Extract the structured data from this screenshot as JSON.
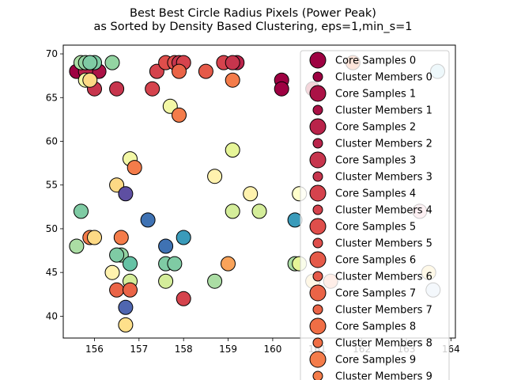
{
  "chart_data": {
    "type": "scatter",
    "title_lines": [
      "Best Best Circle Radius Pixels (Power Peak)",
      "as Sorted by Density Based Clustering, eps=1,min_s=1"
    ],
    "xlabel": "",
    "ylabel": "",
    "xlim": [
      155.3,
      164.1
    ],
    "ylim": [
      37.5,
      71.0
    ],
    "xticks": [
      156,
      157,
      158,
      159,
      160,
      161,
      162,
      163,
      164
    ],
    "yticks": [
      40,
      45,
      50,
      55,
      60,
      65,
      70
    ],
    "legend": {
      "placement": "upper-right",
      "entries": [
        {
          "label": "Core Samples 0",
          "kind": "core",
          "color": "#9e0142"
        },
        {
          "label": "Cluster Members 0",
          "kind": "member",
          "color": "#9e0142"
        },
        {
          "label": "Core Samples 1",
          "kind": "core",
          "color": "#ab1246"
        },
        {
          "label": "Cluster Members 1",
          "kind": "member",
          "color": "#ab1246"
        },
        {
          "label": "Core Samples 2",
          "kind": "core",
          "color": "#b9234a"
        },
        {
          "label": "Cluster Members 2",
          "kind": "member",
          "color": "#b9234a"
        },
        {
          "label": "Core Samples 3",
          "kind": "core",
          "color": "#c7354d"
        },
        {
          "label": "Cluster Members 3",
          "kind": "member",
          "color": "#c7354d"
        },
        {
          "label": "Core Samples 4",
          "kind": "core",
          "color": "#d5434d"
        },
        {
          "label": "Cluster Members 4",
          "kind": "member",
          "color": "#d5434d"
        },
        {
          "label": "Core Samples 5",
          "kind": "core",
          "color": "#df4e4b"
        },
        {
          "label": "Cluster Members 5",
          "kind": "member",
          "color": "#df4e4b"
        },
        {
          "label": "Core Samples 6",
          "kind": "core",
          "color": "#e55a49"
        },
        {
          "label": "Cluster Members 6",
          "kind": "member",
          "color": "#e55a49"
        },
        {
          "label": "Core Samples 7",
          "kind": "core",
          "color": "#ea6447"
        },
        {
          "label": "Cluster Members 7",
          "kind": "member",
          "color": "#ea6447"
        },
        {
          "label": "Core Samples 8",
          "kind": "core",
          "color": "#f06e45"
        },
        {
          "label": "Cluster Members 8",
          "kind": "member",
          "color": "#f06e45"
        },
        {
          "label": "Core Samples 9",
          "kind": "core",
          "color": "#f47c4a"
        },
        {
          "label": "Cluster Members 9",
          "kind": "member",
          "color": "#f47c4a"
        }
      ]
    },
    "points": [
      {
        "x": 155.6,
        "y": 68,
        "color": "#9e0142"
      },
      {
        "x": 155.9,
        "y": 68,
        "color": "#9e0142"
      },
      {
        "x": 156.1,
        "y": 68,
        "color": "#ab1246"
      },
      {
        "x": 155.8,
        "y": 68,
        "color": "#b9234a"
      },
      {
        "x": 156.0,
        "y": 66,
        "color": "#c7354d"
      },
      {
        "x": 156.5,
        "y": 66,
        "color": "#c7354d"
      },
      {
        "x": 157.4,
        "y": 68,
        "color": "#d5434d"
      },
      {
        "x": 157.3,
        "y": 66,
        "color": "#d5434d"
      },
      {
        "x": 157.6,
        "y": 69,
        "color": "#df4e4b"
      },
      {
        "x": 157.8,
        "y": 69,
        "color": "#df4e4b"
      },
      {
        "x": 157.9,
        "y": 69,
        "color": "#c7354d"
      },
      {
        "x": 158.0,
        "y": 69,
        "color": "#d5434d"
      },
      {
        "x": 157.9,
        "y": 68,
        "color": "#ea6447"
      },
      {
        "x": 158.5,
        "y": 68,
        "color": "#e55a49"
      },
      {
        "x": 158.9,
        "y": 69,
        "color": "#d5434d"
      },
      {
        "x": 159.2,
        "y": 69,
        "color": "#b9234a"
      },
      {
        "x": 159.1,
        "y": 69,
        "color": "#c7354d"
      },
      {
        "x": 160.2,
        "y": 67,
        "color": "#9e0142"
      },
      {
        "x": 160.2,
        "y": 66,
        "color": "#9e0142"
      },
      {
        "x": 160.9,
        "y": 66,
        "color": "#c7354d"
      },
      {
        "x": 159.1,
        "y": 67,
        "color": "#f47c4a"
      },
      {
        "x": 161.8,
        "y": 69,
        "color": "#f47c4a"
      },
      {
        "x": 157.7,
        "y": 64,
        "color": "#f3f8a6"
      },
      {
        "x": 157.9,
        "y": 63,
        "color": "#f47c4a"
      },
      {
        "x": 155.7,
        "y": 69,
        "color": "#abdda4"
      },
      {
        "x": 155.8,
        "y": 69,
        "color": "#93d4a2"
      },
      {
        "x": 156.0,
        "y": 69,
        "color": "#7fcba4"
      },
      {
        "x": 155.9,
        "y": 69,
        "color": "#7fcba4"
      },
      {
        "x": 156.4,
        "y": 69,
        "color": "#93d4a2"
      },
      {
        "x": 155.8,
        "y": 67,
        "color": "#f3f8a6"
      },
      {
        "x": 155.9,
        "y": 67,
        "color": "#fdd985"
      },
      {
        "x": 163.7,
        "y": 68,
        "color": "#abd9e9"
      },
      {
        "x": 159.1,
        "y": 59,
        "color": "#e6f598"
      },
      {
        "x": 156.8,
        "y": 58,
        "color": "#f3f8a6"
      },
      {
        "x": 156.9,
        "y": 57,
        "color": "#f47c4a"
      },
      {
        "x": 158.7,
        "y": 56,
        "color": "#fff2ae"
      },
      {
        "x": 156.5,
        "y": 55,
        "color": "#fdd985"
      },
      {
        "x": 156.7,
        "y": 54,
        "color": "#5e4fa2"
      },
      {
        "x": 159.5,
        "y": 54,
        "color": "#fff2ae"
      },
      {
        "x": 160.6,
        "y": 54,
        "color": "#ffffcc"
      },
      {
        "x": 155.7,
        "y": 52,
        "color": "#7fcba4"
      },
      {
        "x": 159.1,
        "y": 52,
        "color": "#d4ed9a"
      },
      {
        "x": 159.7,
        "y": 52,
        "color": "#d4ed9a"
      },
      {
        "x": 163.3,
        "y": 52,
        "color": "#f6b3c2"
      },
      {
        "x": 157.2,
        "y": 51,
        "color": "#3f72b3"
      },
      {
        "x": 160.5,
        "y": 51,
        "color": "#3a9bba"
      },
      {
        "x": 155.9,
        "y": 49,
        "color": "#f47c4a"
      },
      {
        "x": 156.0,
        "y": 49,
        "color": "#fdd985"
      },
      {
        "x": 156.6,
        "y": 49,
        "color": "#f47c4a"
      },
      {
        "x": 158.0,
        "y": 49,
        "color": "#3a9bba"
      },
      {
        "x": 155.6,
        "y": 48,
        "color": "#abdda4"
      },
      {
        "x": 157.6,
        "y": 48,
        "color": "#3f72b3"
      },
      {
        "x": 156.6,
        "y": 47,
        "color": "#93d4a2"
      },
      {
        "x": 156.5,
        "y": 47,
        "color": "#7fcba4"
      },
      {
        "x": 156.8,
        "y": 46,
        "color": "#66c2a5"
      },
      {
        "x": 157.6,
        "y": 46,
        "color": "#7fcba4"
      },
      {
        "x": 157.8,
        "y": 46,
        "color": "#7fcba4"
      },
      {
        "x": 159.0,
        "y": 46,
        "color": "#f9a35a"
      },
      {
        "x": 160.5,
        "y": 46,
        "color": "#abdda4"
      },
      {
        "x": 160.6,
        "y": 46,
        "color": "#e6f598"
      },
      {
        "x": 156.4,
        "y": 45,
        "color": "#fff2ae"
      },
      {
        "x": 163.5,
        "y": 45,
        "color": "#fee08b"
      },
      {
        "x": 156.8,
        "y": 44,
        "color": "#d4ed9a"
      },
      {
        "x": 157.6,
        "y": 44,
        "color": "#d4ed9a"
      },
      {
        "x": 158.7,
        "y": 44,
        "color": "#abdda4"
      },
      {
        "x": 160.9,
        "y": 44,
        "color": "#fdd985"
      },
      {
        "x": 161.3,
        "y": 44,
        "color": "#fca98c"
      },
      {
        "x": 156.5,
        "y": 43,
        "color": "#ea6447"
      },
      {
        "x": 156.8,
        "y": 43,
        "color": "#ea6447"
      },
      {
        "x": 163.6,
        "y": 43,
        "color": "#c6dbef"
      },
      {
        "x": 158.0,
        "y": 42,
        "color": "#d5434d"
      },
      {
        "x": 156.7,
        "y": 41,
        "color": "#4f66b0"
      },
      {
        "x": 156.7,
        "y": 39,
        "color": "#fee08b"
      }
    ]
  }
}
